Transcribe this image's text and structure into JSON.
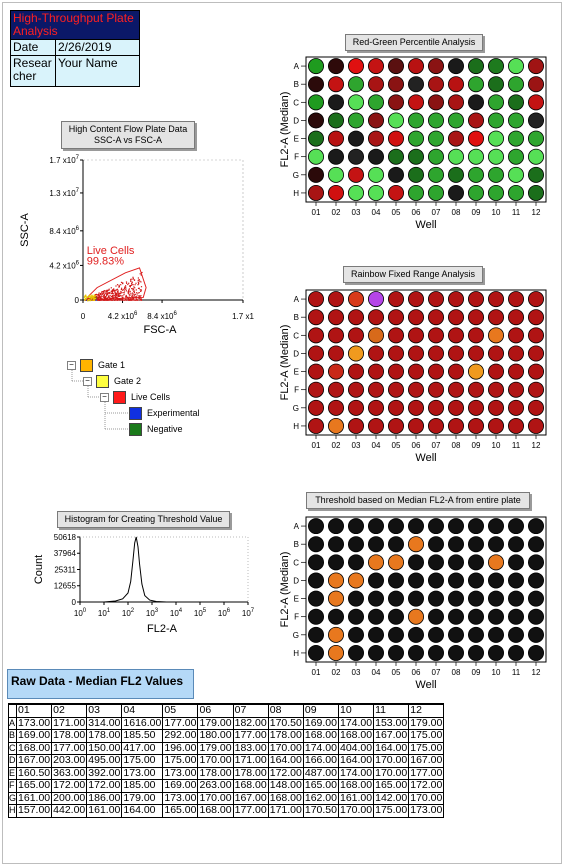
{
  "header": {
    "title": "High-Throughput Plate Analysis",
    "date_label": "Date",
    "date_value": "2/26/2019",
    "researcher_label": "Researcher",
    "researcher_value": "Your Name"
  },
  "colors": {
    "header_bg": "#0b1868",
    "header_text": "#ff2020",
    "cell_bg": "#d9f3fb",
    "raw_title_bg": "#b5d9f7"
  },
  "chart_data": [
    {
      "id": "red-green",
      "type": "heatmap",
      "title": "Red-Green Percentile Analysis",
      "xlabel": "Well",
      "ylabel": "FL2-A (Median)",
      "columns": [
        "01",
        "02",
        "03",
        "04",
        "05",
        "06",
        "07",
        "08",
        "09",
        "10",
        "11",
        "12"
      ],
      "rows": [
        "A",
        "B",
        "C",
        "D",
        "E",
        "F",
        "G",
        "H"
      ],
      "wells": [
        [
          "#1f9b1f",
          "#2e0a0a",
          "#e01010",
          "#c41313",
          "#5a1010",
          "#b81212",
          "#8a1313",
          "#1a1a1a",
          "#1b6e1b",
          "#1e7a1e",
          "#56e056",
          "#a01414"
        ],
        [
          "#2b0a0a",
          "#c41313",
          "#2ea52e",
          "#a81414",
          "#8a1313",
          "#222222",
          "#a81414",
          "#b81212",
          "#2ea52e",
          "#1b6e1b",
          "#2ea52e",
          "#9b1414"
        ],
        [
          "#1f9b1f",
          "#1a1a1a",
          "#56e056",
          "#2ea52e",
          "#8a1313",
          "#c41313",
          "#8a1313",
          "#a81414",
          "#1a1a1a",
          "#2ea52e",
          "#1b6e1b",
          "#c41313"
        ],
        [
          "#2b0a0a",
          "#1b6e1b",
          "#2ea52e",
          "#8a1313",
          "#56e056",
          "#2ea52e",
          "#2ea52e",
          "#2ea52e",
          "#a81414",
          "#2ea52e",
          "#2ea52e",
          "#222222"
        ],
        [
          "#1b6e1b",
          "#b81212",
          "#1a1a1a",
          "#a81414",
          "#d01010",
          "#2ea52e",
          "#2ea52e",
          "#a81414",
          "#e01010",
          "#56e056",
          "#2ea52e",
          "#2ea52e"
        ],
        [
          "#56e056",
          "#1a1a1a",
          "#222222",
          "#1a1a1a",
          "#1b6e1b",
          "#1b6e1b",
          "#2ea52e",
          "#56e056",
          "#56e056",
          "#56e056",
          "#2ea52e",
          "#56e056"
        ],
        [
          "#2b0a0a",
          "#56e056",
          "#c41313",
          "#56e056",
          "#1a1a1a",
          "#1b6e1b",
          "#2ea52e",
          "#1b6e1b",
          "#2ea52e",
          "#2ea52e",
          "#56e056",
          "#1b6e1b"
        ],
        [
          "#a81414",
          "#d01010",
          "#56e056",
          "#56e056",
          "#c41313",
          "#2ea52e",
          "#2ea52e",
          "#1a1a1a",
          "#2ea52e",
          "#2ea52e",
          "#2ea52e",
          "#1b6e1b"
        ]
      ]
    },
    {
      "id": "rainbow",
      "type": "heatmap",
      "title": "Rainbow Fixed Range Analysis",
      "xlabel": "Well",
      "ylabel": "FL2-A (Median)",
      "columns": [
        "01",
        "02",
        "03",
        "04",
        "05",
        "06",
        "07",
        "08",
        "09",
        "10",
        "11",
        "12"
      ],
      "rows": [
        "A",
        "B",
        "C",
        "D",
        "E",
        "F",
        "G",
        "H"
      ],
      "wells": [
        [
          "#b01414",
          "#b01414",
          "#d83a1a",
          "#b545e8",
          "#b01414",
          "#b01414",
          "#b01414",
          "#b01414",
          "#b01414",
          "#b01414",
          "#b01414",
          "#b01414"
        ],
        [
          "#b01414",
          "#b01414",
          "#b01414",
          "#b01414",
          "#b01414",
          "#b01414",
          "#b01414",
          "#b01414",
          "#b01414",
          "#b01414",
          "#b01414",
          "#b01414"
        ],
        [
          "#b01414",
          "#b01414",
          "#b01414",
          "#d86a1a",
          "#b01414",
          "#b01414",
          "#b01414",
          "#b01414",
          "#b01414",
          "#e8781e",
          "#b01414",
          "#b01414"
        ],
        [
          "#b01414",
          "#b01414",
          "#f09a1e",
          "#b01414",
          "#b01414",
          "#b01414",
          "#b01414",
          "#b01414",
          "#b01414",
          "#b01414",
          "#b01414",
          "#b01414"
        ],
        [
          "#b01414",
          "#c82818",
          "#b01414",
          "#b01414",
          "#b01414",
          "#b01414",
          "#b01414",
          "#b01414",
          "#f09a1e",
          "#b01414",
          "#b01414",
          "#b01414"
        ],
        [
          "#b01414",
          "#b01414",
          "#b01414",
          "#b01414",
          "#b01414",
          "#b01414",
          "#b01414",
          "#b01414",
          "#b01414",
          "#b01414",
          "#b01414",
          "#b01414"
        ],
        [
          "#b01414",
          "#b01414",
          "#b01414",
          "#b01414",
          "#b01414",
          "#b01414",
          "#b01414",
          "#b01414",
          "#b01414",
          "#b01414",
          "#b01414",
          "#b01414"
        ],
        [
          "#b01414",
          "#e8781e",
          "#b01414",
          "#b01414",
          "#b01414",
          "#b01414",
          "#b01414",
          "#b01414",
          "#b01414",
          "#b01414",
          "#b01414",
          "#b01414"
        ]
      ]
    },
    {
      "id": "threshold",
      "type": "heatmap",
      "title": "Threshold based on Median FL2-A from entire plate",
      "xlabel": "Well",
      "ylabel": "FL2-A (Median)",
      "columns": [
        "01",
        "02",
        "03",
        "04",
        "05",
        "06",
        "07",
        "08",
        "09",
        "10",
        "11",
        "12"
      ],
      "rows": [
        "A",
        "B",
        "C",
        "D",
        "E",
        "F",
        "G",
        "H"
      ],
      "wells": [
        [
          "#111111",
          "#111111",
          "#111111",
          "#111111",
          "#111111",
          "#111111",
          "#111111",
          "#111111",
          "#111111",
          "#111111",
          "#111111",
          "#111111"
        ],
        [
          "#111111",
          "#111111",
          "#111111",
          "#111111",
          "#111111",
          "#e8781e",
          "#111111",
          "#111111",
          "#111111",
          "#111111",
          "#111111",
          "#111111"
        ],
        [
          "#111111",
          "#111111",
          "#111111",
          "#e8781e",
          "#e8781e",
          "#111111",
          "#111111",
          "#111111",
          "#111111",
          "#e8781e",
          "#111111",
          "#111111"
        ],
        [
          "#111111",
          "#e8781e",
          "#e8781e",
          "#111111",
          "#111111",
          "#111111",
          "#111111",
          "#111111",
          "#111111",
          "#111111",
          "#111111",
          "#111111"
        ],
        [
          "#111111",
          "#e8781e",
          "#111111",
          "#111111",
          "#111111",
          "#111111",
          "#111111",
          "#111111",
          "#111111",
          "#111111",
          "#111111",
          "#111111"
        ],
        [
          "#111111",
          "#111111",
          "#111111",
          "#111111",
          "#111111",
          "#e8781e",
          "#111111",
          "#111111",
          "#111111",
          "#111111",
          "#111111",
          "#111111"
        ],
        [
          "#111111",
          "#e8781e",
          "#111111",
          "#111111",
          "#111111",
          "#111111",
          "#111111",
          "#111111",
          "#111111",
          "#111111",
          "#111111",
          "#111111"
        ],
        [
          "#111111",
          "#e8781e",
          "#111111",
          "#111111",
          "#111111",
          "#111111",
          "#111111",
          "#111111",
          "#111111",
          "#111111",
          "#111111",
          "#111111"
        ]
      ]
    },
    {
      "id": "flow",
      "type": "scatter",
      "title": "High Content Flow Plate Data\nSSC-A vs FSC-A",
      "xlabel": "FSC-A",
      "ylabel": "SSC-A",
      "xlim": [
        0,
        17000000
      ],
      "ylim": [
        0,
        17000000
      ],
      "x_ticks": [
        "0",
        "4.2 x10^6",
        "8.4 x10^6",
        "1.7 x1"
      ],
      "y_ticks": [
        "0",
        "4.2 x10^6",
        "8.4 x10^6",
        "1.3 x10^7",
        "1.7 x10^7"
      ],
      "gate_label": "Live Cells",
      "gate_percent": "99.83%"
    },
    {
      "id": "histogram",
      "type": "line",
      "title": "Histogram for Creating Threshold Value",
      "xlabel": "FL2-A",
      "ylabel": "Count",
      "x_scale": "log",
      "x_ticks": [
        "10^0",
        "10^1",
        "10^2",
        "10^3",
        "10^4",
        "10^5",
        "10^6",
        "10^7"
      ],
      "y_ticks": [
        "0",
        "12655",
        "25311",
        "37964",
        "50618"
      ],
      "ylim": [
        0,
        50618
      ],
      "x": [
        10,
        30,
        60,
        100,
        130,
        160,
        190,
        220,
        260,
        300,
        380,
        500,
        800,
        1500,
        4000
      ],
      "y": [
        0,
        800,
        2500,
        7000,
        16000,
        32000,
        46000,
        50618,
        43000,
        30000,
        14000,
        5000,
        1500,
        400,
        0
      ]
    }
  ],
  "gate_tree": [
    {
      "label": "Gate 1",
      "color": "#ffb400",
      "level": 0
    },
    {
      "label": "Gate 2",
      "color": "#ffff40",
      "level": 1
    },
    {
      "label": "Live Cells",
      "color": "#ff1a1a",
      "level": 2
    },
    {
      "label": "Experimental",
      "color": "#1030e0",
      "level": 3
    },
    {
      "label": "Negative",
      "color": "#1a7a1a",
      "level": 3
    }
  ],
  "raw_data": {
    "title": "Raw Data - Median FL2 Values",
    "columns": [
      "01",
      "02",
      "03",
      "04",
      "05",
      "06",
      "07",
      "08",
      "09",
      "10",
      "11",
      "12"
    ],
    "rows": [
      {
        "label": "A",
        "values": [
          "173.00",
          "171.00",
          "314.00",
          "1616.00",
          "177.00",
          "179.00",
          "182.00",
          "170.50",
          "169.00",
          "174.00",
          "153.00",
          "179.00"
        ]
      },
      {
        "label": "B",
        "values": [
          "169.00",
          "178.00",
          "178.00",
          "185.50",
          "292.00",
          "180.00",
          "177.00",
          "178.00",
          "168.00",
          "168.00",
          "167.00",
          "175.00"
        ]
      },
      {
        "label": "C",
        "values": [
          "168.00",
          "177.00",
          "150.00",
          "417.00",
          "196.00",
          "179.00",
          "183.00",
          "170.00",
          "174.00",
          "404.00",
          "164.00",
          "175.00"
        ]
      },
      {
        "label": "D",
        "values": [
          "167.00",
          "203.00",
          "495.00",
          "175.00",
          "175.00",
          "170.00",
          "171.00",
          "164.00",
          "166.00",
          "164.00",
          "170.00",
          "167.00"
        ]
      },
      {
        "label": "E",
        "values": [
          "160.50",
          "363.00",
          "392.00",
          "173.00",
          "173.00",
          "178.00",
          "178.00",
          "172.00",
          "487.00",
          "174.00",
          "170.00",
          "177.00"
        ]
      },
      {
        "label": "F",
        "values": [
          "165.00",
          "172.00",
          "172.00",
          "185.00",
          "169.00",
          "263.00",
          "168.00",
          "148.00",
          "165.00",
          "168.00",
          "165.00",
          "172.00"
        ]
      },
      {
        "label": "G",
        "values": [
          "161.00",
          "200.00",
          "186.00",
          "179.00",
          "173.00",
          "170.00",
          "167.00",
          "168.00",
          "162.00",
          "161.00",
          "142.00",
          "170.00"
        ]
      },
      {
        "label": "H",
        "values": [
          "157.00",
          "442.00",
          "161.00",
          "164.00",
          "165.00",
          "168.00",
          "177.00",
          "171.00",
          "170.50",
          "170.00",
          "175.00",
          "173.00"
        ]
      }
    ]
  }
}
